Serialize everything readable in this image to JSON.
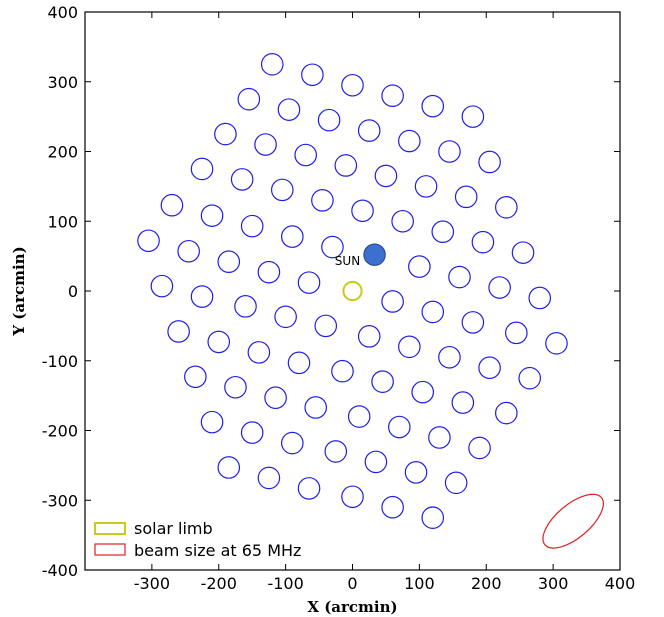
{
  "chart_data": {
    "type": "scatter",
    "xlabel": "X (arcmin)",
    "ylabel": "Y (arcmin)",
    "xlim": [
      -400,
      400
    ],
    "ylim": [
      -400,
      400
    ],
    "xticks": [
      -300,
      -200,
      -100,
      0,
      100,
      200,
      300,
      400
    ],
    "yticks": [
      -400,
      -300,
      -200,
      -100,
      0,
      100,
      200,
      300,
      400
    ],
    "grid": false,
    "legend_position": "bottom-left",
    "beam_radius_arcmin": 16,
    "beams": [
      {
        "x": -120,
        "y": 325
      },
      {
        "x": -60,
        "y": 310
      },
      {
        "x": 0,
        "y": 295
      },
      {
        "x": 60,
        "y": 280
      },
      {
        "x": 120,
        "y": 265
      },
      {
        "x": 180,
        "y": 250
      },
      {
        "x": -155,
        "y": 275
      },
      {
        "x": -95,
        "y": 260
      },
      {
        "x": -35,
        "y": 245
      },
      {
        "x": 25,
        "y": 230
      },
      {
        "x": 85,
        "y": 215
      },
      {
        "x": 145,
        "y": 200
      },
      {
        "x": 205,
        "y": 185
      },
      {
        "x": -190,
        "y": 225
      },
      {
        "x": -130,
        "y": 210
      },
      {
        "x": -70,
        "y": 195
      },
      {
        "x": -10,
        "y": 180
      },
      {
        "x": 50,
        "y": 165
      },
      {
        "x": 110,
        "y": 150
      },
      {
        "x": 170,
        "y": 135
      },
      {
        "x": 230,
        "y": 120
      },
      {
        "x": -225,
        "y": 175
      },
      {
        "x": -165,
        "y": 160
      },
      {
        "x": -105,
        "y": 145
      },
      {
        "x": -45,
        "y": 130
      },
      {
        "x": 15,
        "y": 115
      },
      {
        "x": 75,
        "y": 100
      },
      {
        "x": 135,
        "y": 85
      },
      {
        "x": 195,
        "y": 70
      },
      {
        "x": 255,
        "y": 55
      },
      {
        "x": -270,
        "y": 123
      },
      {
        "x": -210,
        "y": 108
      },
      {
        "x": -150,
        "y": 93
      },
      {
        "x": -90,
        "y": 78
      },
      {
        "x": -30,
        "y": 63
      },
      {
        "x": 100,
        "y": 35
      },
      {
        "x": 160,
        "y": 20
      },
      {
        "x": 220,
        "y": 5
      },
      {
        "x": 280,
        "y": -10
      },
      {
        "x": -305,
        "y": 72
      },
      {
        "x": -245,
        "y": 57
      },
      {
        "x": -185,
        "y": 42
      },
      {
        "x": -125,
        "y": 27
      },
      {
        "x": -65,
        "y": 12
      },
      {
        "x": 60,
        "y": -15
      },
      {
        "x": 120,
        "y": -30
      },
      {
        "x": 180,
        "y": -45
      },
      {
        "x": 245,
        "y": -60
      },
      {
        "x": 305,
        "y": -75
      },
      {
        "x": -285,
        "y": 7
      },
      {
        "x": -225,
        "y": -8
      },
      {
        "x": -160,
        "y": -22
      },
      {
        "x": -100,
        "y": -37
      },
      {
        "x": -40,
        "y": -50
      },
      {
        "x": 25,
        "y": -65
      },
      {
        "x": 85,
        "y": -80
      },
      {
        "x": 145,
        "y": -95
      },
      {
        "x": 205,
        "y": -110
      },
      {
        "x": 265,
        "y": -125
      },
      {
        "x": -260,
        "y": -58
      },
      {
        "x": -200,
        "y": -73
      },
      {
        "x": -140,
        "y": -88
      },
      {
        "x": -80,
        "y": -103
      },
      {
        "x": -15,
        "y": -115
      },
      {
        "x": 45,
        "y": -130
      },
      {
        "x": 105,
        "y": -145
      },
      {
        "x": 165,
        "y": -160
      },
      {
        "x": 230,
        "y": -175
      },
      {
        "x": -235,
        "y": -123
      },
      {
        "x": -175,
        "y": -138
      },
      {
        "x": -115,
        "y": -153
      },
      {
        "x": -55,
        "y": -167
      },
      {
        "x": 10,
        "y": -180
      },
      {
        "x": 70,
        "y": -195
      },
      {
        "x": 130,
        "y": -210
      },
      {
        "x": 190,
        "y": -225
      },
      {
        "x": -210,
        "y": -188
      },
      {
        "x": -150,
        "y": -203
      },
      {
        "x": -90,
        "y": -218
      },
      {
        "x": -25,
        "y": -230
      },
      {
        "x": 35,
        "y": -245
      },
      {
        "x": 95,
        "y": -260
      },
      {
        "x": 155,
        "y": -275
      },
      {
        "x": -185,
        "y": -253
      },
      {
        "x": -125,
        "y": -268
      },
      {
        "x": -65,
        "y": -283
      },
      {
        "x": 0,
        "y": -295
      },
      {
        "x": 60,
        "y": -310
      },
      {
        "x": 120,
        "y": -325
      }
    ],
    "filled_beam": {
      "x": 33,
      "y": 52
    },
    "sun": {
      "x": 0,
      "y": 0,
      "radius_arcmin": 16,
      "label": "SUN"
    },
    "beam_65mhz": {
      "x": 330,
      "y": -330,
      "rx": 55,
      "ry": 25,
      "angle_deg": 40
    },
    "legend": [
      {
        "label": "solar limb",
        "color": "#c9c91e"
      },
      {
        "label": "beam size at 65 MHz",
        "color": "#dd2222"
      }
    ],
    "colors": {
      "beam": "#1e1eea",
      "filled_beam": "#3b6fd0",
      "solar_limb": "#c9c91e",
      "beam_65mhz": "#dd2222",
      "axis": "#000000"
    }
  }
}
